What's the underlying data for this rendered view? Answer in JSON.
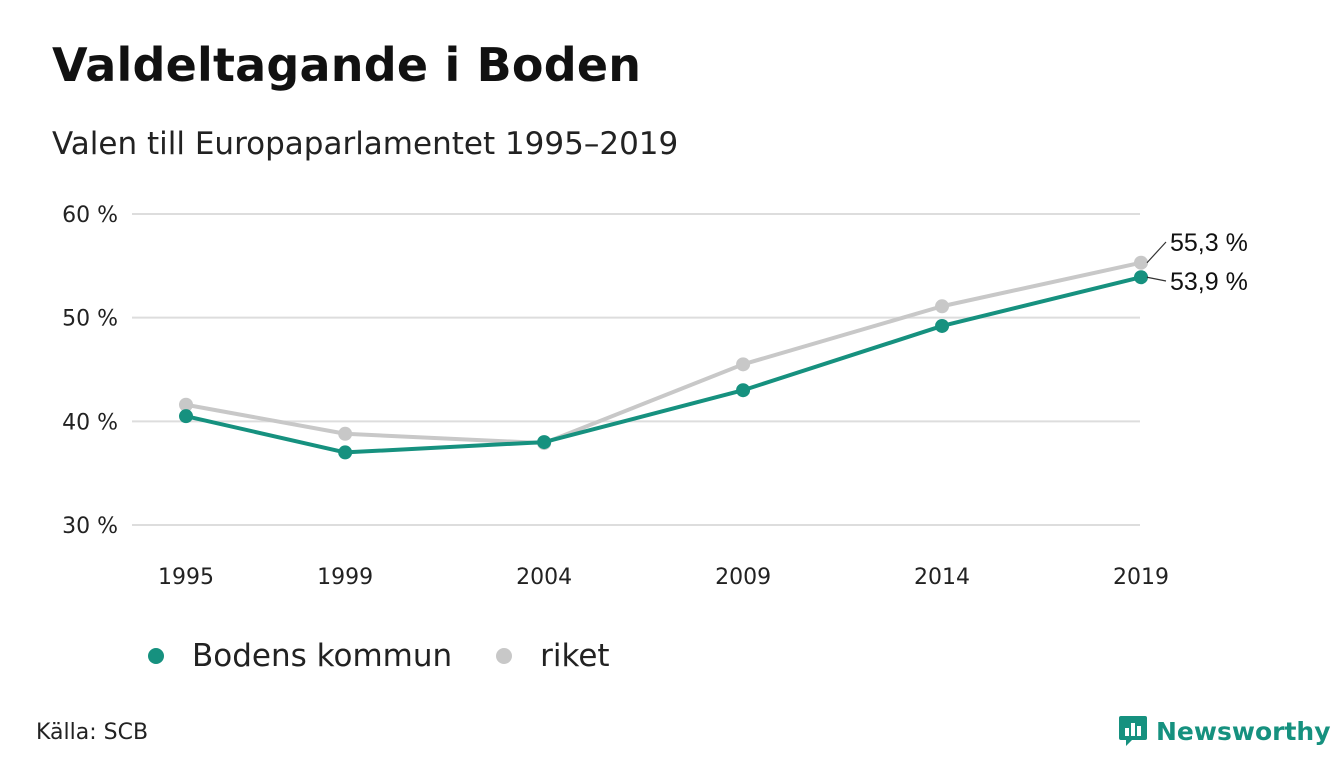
{
  "title": "Valdeltagande i Boden",
  "subtitle": "Valen till Europaparlamentet 1995–2019",
  "source": "Källa: SCB",
  "brand": {
    "name": "Newsworthy",
    "icon": "bar-chart-speech-bubble-icon"
  },
  "colors": {
    "primary": "#16917f",
    "secondary": "#c8c8c8",
    "grid": "#dddddd"
  },
  "chart_data": {
    "type": "line",
    "categories": [
      "1995",
      "1999",
      "2004",
      "2009",
      "2014",
      "2019"
    ],
    "x": [
      1995,
      1999,
      2004,
      2009,
      2014,
      2019
    ],
    "ylim": [
      30,
      60
    ],
    "yticks": [
      30,
      40,
      50,
      60
    ],
    "ytick_labels": [
      "30 %",
      "40 %",
      "50 %",
      "60 %"
    ],
    "grid": true,
    "legend_position": "bottom-left",
    "series": [
      {
        "name": "riket",
        "values": [
          41.6,
          38.8,
          37.9,
          45.5,
          51.1,
          55.3
        ],
        "color": "#c8c8c8",
        "end_label": "55,3 %"
      },
      {
        "name": "Bodens kommun",
        "values": [
          40.5,
          37.0,
          38.0,
          43.0,
          49.2,
          53.9
        ],
        "color": "#16917f",
        "end_label": "53,9 %"
      }
    ],
    "legend": [
      "Bodens kommun",
      "riket"
    ]
  }
}
